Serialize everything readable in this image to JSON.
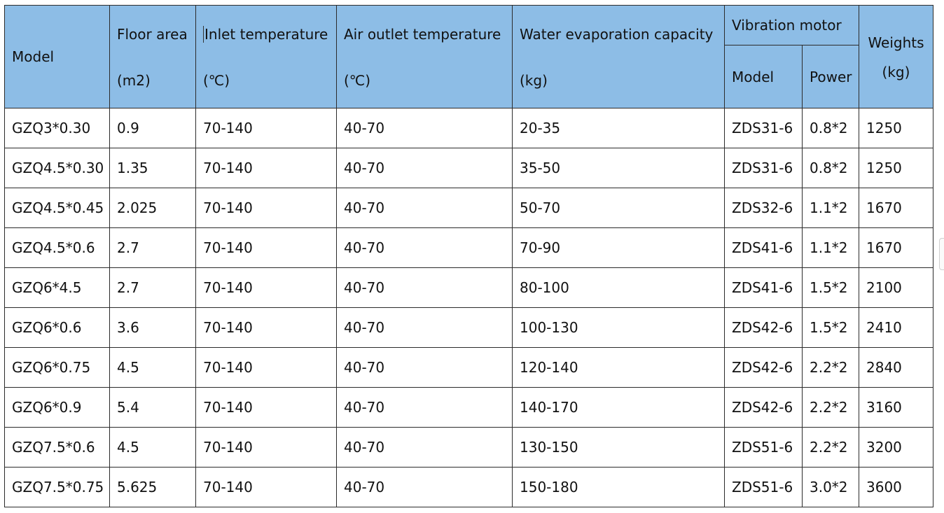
{
  "table": {
    "headers": {
      "model": "Model",
      "floor_area": "Floor area",
      "floor_area_unit": "(m2)",
      "inlet_temperature": "Inlet temperature",
      "inlet_temperature_unit": "(℃)",
      "air_outlet_temperature": "Air outlet temperature",
      "air_outlet_temperature_unit": "(℃)",
      "water_evaporation_capacity": "Water evaporation capacity",
      "water_evaporation_capacity_unit": "(kg)",
      "vibration_motor": "Vibration motor",
      "motor_model": "Model",
      "motor_power": "Power",
      "weights": "Weights",
      "weights_unit": "(kg)"
    },
    "rows": [
      [
        "GZQ3*0.30",
        "0.9",
        "70-140",
        "40-70",
        "20-35",
        "ZDS31-6",
        "0.8*2",
        "1250"
      ],
      [
        "GZQ4.5*0.30",
        "1.35",
        "70-140",
        "40-70",
        "35-50",
        "ZDS31-6",
        "0.8*2",
        "1250"
      ],
      [
        "GZQ4.5*0.45",
        "2.025",
        "70-140",
        "40-70",
        "50-70",
        "ZDS32-6",
        "1.1*2",
        "1670"
      ],
      [
        "GZQ4.5*0.6",
        "2.7",
        "70-140",
        "40-70",
        "70-90",
        "ZDS41-6",
        "1.1*2",
        "1670"
      ],
      [
        "GZQ6*4.5",
        "2.7",
        "70-140",
        "40-70",
        "80-100",
        "ZDS41-6",
        "1.5*2",
        "2100"
      ],
      [
        "GZQ6*0.6",
        "3.6",
        "70-140",
        "40-70",
        "100-130",
        "ZDS42-6",
        "1.5*2",
        "2410"
      ],
      [
        "GZQ6*0.75",
        "4.5",
        "70-140",
        "40-70",
        "120-140",
        "ZDS42-6",
        "2.2*2",
        "2840"
      ],
      [
        "GZQ6*0.9",
        "5.4",
        "70-140",
        "40-70",
        "140-170",
        "ZDS42-6",
        "2.2*2",
        "3160"
      ],
      [
        "GZQ7.5*0.6",
        "4.5",
        "70-140",
        "40-70",
        "130-150",
        "ZDS51-6",
        "2.2*2",
        "3200"
      ],
      [
        "GZQ7.5*0.75",
        "5.625",
        "70-140",
        "40-70",
        "150-180",
        "ZDS51-6",
        "3.0*2",
        "3600"
      ]
    ]
  },
  "colors": {
    "header_background": "#8dbde6",
    "border": "#2b2b2b"
  }
}
